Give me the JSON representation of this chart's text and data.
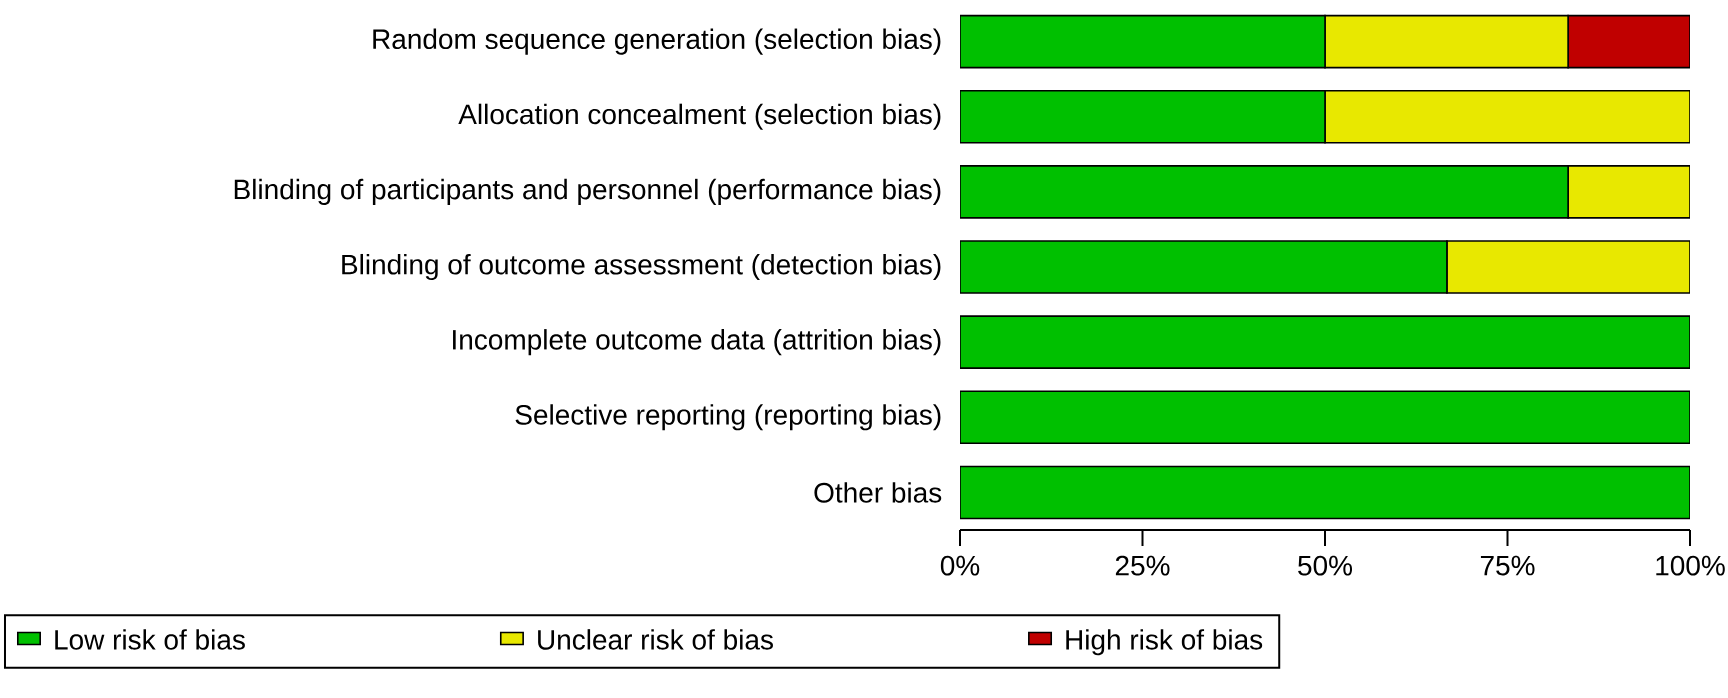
{
  "chart_data": {
    "type": "bar",
    "orientation": "horizontal",
    "stacked": true,
    "categories": [
      "Random sequence generation (selection bias)",
      "Allocation concealment (selection bias)",
      "Blinding of participants and personnel (performance bias)",
      "Blinding of outcome assessment (detection bias)",
      "Incomplete outcome data (attrition bias)",
      "Selective reporting (reporting bias)",
      "Other bias"
    ],
    "series": [
      {
        "name": "Low risk of bias",
        "color": "#00c000",
        "values": [
          50,
          50,
          83.3,
          66.7,
          100,
          100,
          100
        ]
      },
      {
        "name": "Unclear risk of bias",
        "color": "#e8e800",
        "values": [
          33.3,
          50,
          16.7,
          33.3,
          0,
          0,
          0
        ]
      },
      {
        "name": "High risk of bias",
        "color": "#c00000",
        "values": [
          16.7,
          0,
          0,
          0,
          0,
          0,
          0
        ]
      }
    ],
    "xlim": [
      0,
      100
    ],
    "xticks": [
      {
        "value": 0,
        "label": "0%"
      },
      {
        "value": 25,
        "label": "25%"
      },
      {
        "value": 50,
        "label": "50%"
      },
      {
        "value": 75,
        "label": "75%"
      },
      {
        "value": 100,
        "label": "100%"
      }
    ],
    "legend": "bottom"
  }
}
